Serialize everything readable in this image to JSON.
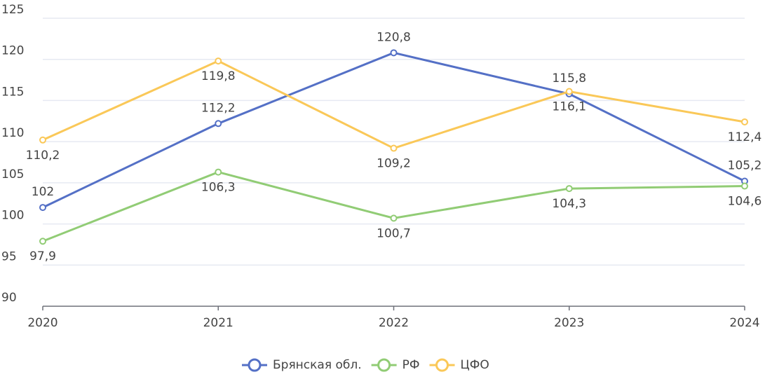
{
  "chart_data": {
    "type": "line",
    "categories": [
      "2020",
      "2021",
      "2022",
      "2023",
      "2024"
    ],
    "series": [
      {
        "name": "Брянская обл.",
        "color": "#5470c6",
        "label_position": "top",
        "values": [
          102,
          112.2,
          120.8,
          115.8,
          105.2
        ],
        "value_labels": [
          "102",
          "112,2",
          "120,8",
          "115,8",
          "105,2"
        ]
      },
      {
        "name": "РФ",
        "color": "#91cc75",
        "label_position": "bottom",
        "values": [
          97.9,
          106.3,
          100.7,
          104.3,
          104.6
        ],
        "value_labels": [
          "97,9",
          "106,3",
          "100,7",
          "104,3",
          "104,6"
        ]
      },
      {
        "name": "ЦФО",
        "color": "#fac858",
        "label_position": "bottom",
        "values": [
          110.2,
          119.8,
          109.2,
          116.1,
          112.4
        ],
        "value_labels": [
          "110,2",
          "119,8",
          "109,2",
          "116,1",
          "112,4"
        ]
      }
    ],
    "ylim": [
      90,
      125
    ],
    "yticks": [
      90,
      95,
      100,
      105,
      110,
      115,
      120,
      125
    ],
    "grid": true,
    "legend": "bottom"
  }
}
